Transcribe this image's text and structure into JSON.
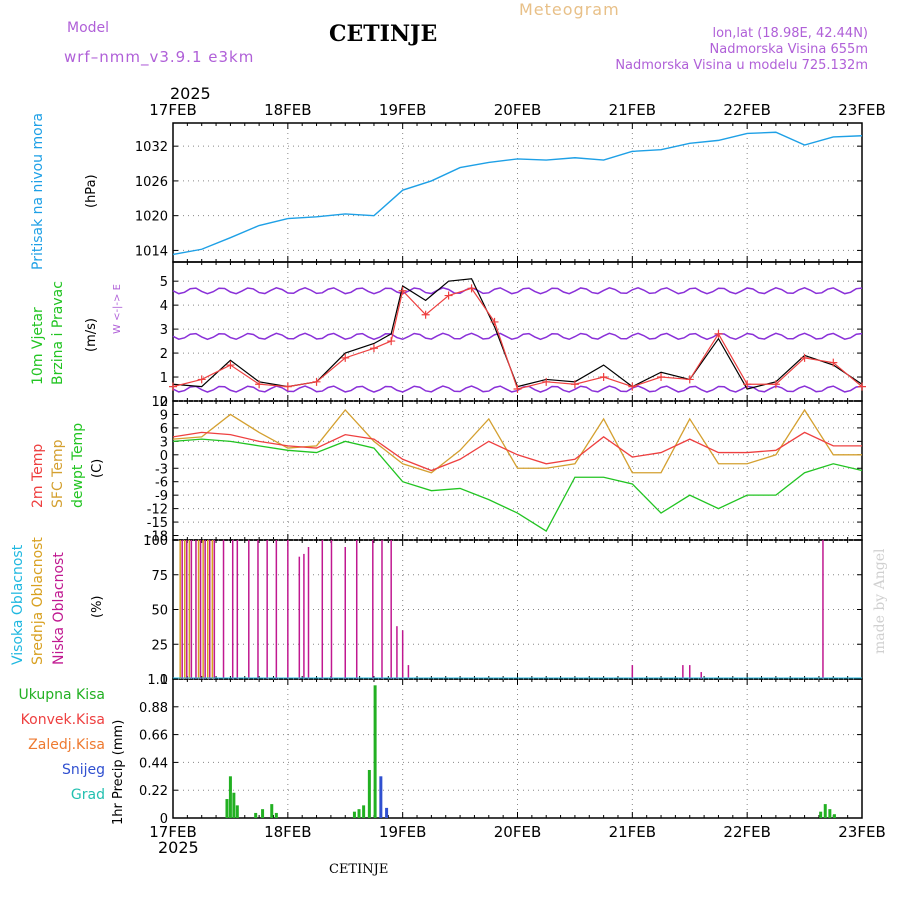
{
  "header": {
    "model_label": "Model",
    "model_name": "wrf–nmm_v3.9.1  e3km",
    "station": "CETINJE",
    "chart_kind": "Meteogram",
    "lonlat": "lon,lat (18.98E, 42.44N)",
    "altitude": "Nadmorska Visina 655m",
    "model_altitude": "Nadmorska Visina u modelu 725.132m",
    "year_top": "2025",
    "year_bottom": "2025",
    "footer_station": "CETINJE",
    "credit": "made by Angel"
  },
  "colors": {
    "pressure": "#1ea0e6",
    "temp2m": "#ee4040",
    "sfc": "#d4a030",
    "dew": "#22c422",
    "high_cloud": "#20b8e0",
    "mid_cloud": "#d8a020",
    "low_cloud": "#c01890",
    "precip": "#22b022",
    "snow": "#3050d0",
    "wind_purple": "#8a30d8",
    "grid": "#888888"
  },
  "chart_data": [
    {
      "id": "pressure",
      "type": "line",
      "title": "Pritisak na nivou mora",
      "ylabel": "(hPa)",
      "yticks": [
        "1032",
        "1026",
        "1020",
        "1014"
      ],
      "ylim": [
        1012,
        1036
      ],
      "x_day": [
        0,
        0.25,
        0.5,
        0.75,
        1.0,
        1.25,
        1.5,
        1.75,
        2.0,
        2.25,
        2.5,
        2.75,
        3.0,
        3.25,
        3.5,
        3.75,
        4.0,
        4.25,
        4.5,
        4.75,
        5.0,
        5.25,
        5.5,
        5.75,
        6.0
      ],
      "series": [
        {
          "name": "Sea level pressure",
          "values": [
            1013.3,
            1014.2,
            1016.2,
            1018.3,
            1019.5,
            1019.8,
            1020.3,
            1020.0,
            1024.4,
            1026.0,
            1028.3,
            1029.2,
            1029.8,
            1029.6,
            1030.0,
            1029.6,
            1031.1,
            1031.4,
            1032.5,
            1033.0,
            1034.2,
            1034.4,
            1032.2,
            1033.6,
            1033.8
          ]
        }
      ]
    },
    {
      "id": "wind",
      "type": "line",
      "title": "10m Vjetar Brzina i Pravac",
      "ylabel": "(m/s)",
      "direction_legend": "W <-|-> E",
      "yticks": [
        "5",
        "4",
        "3",
        "2",
        "1",
        "0"
      ],
      "ylim": [
        0,
        5.8
      ],
      "x_day": [
        0,
        0.25,
        0.5,
        0.75,
        1.0,
        1.25,
        1.5,
        1.75,
        1.9,
        2.0,
        2.2,
        2.4,
        2.6,
        2.8,
        3.0,
        3.25,
        3.5,
        3.75,
        4.0,
        4.25,
        4.5,
        4.75,
        5.0,
        5.25,
        5.5,
        5.75,
        6.0
      ],
      "series": [
        {
          "name": "Wind speed",
          "values": [
            0.6,
            0.9,
            1.5,
            0.7,
            0.6,
            0.8,
            1.8,
            2.2,
            2.5,
            4.6,
            3.6,
            4.4,
            4.7,
            3.3,
            0.5,
            0.8,
            0.7,
            1.0,
            0.6,
            1.0,
            0.9,
            2.8,
            0.7,
            0.7,
            1.8,
            1.6,
            0.6
          ]
        },
        {
          "name": "Gust",
          "values": [
            0.7,
            0.6,
            1.7,
            0.8,
            0.6,
            0.8,
            2.0,
            2.4,
            2.8,
            4.8,
            4.2,
            5.0,
            5.1,
            3.1,
            0.6,
            0.9,
            0.8,
            1.5,
            0.6,
            1.2,
            0.9,
            2.6,
            0.5,
            0.8,
            1.9,
            1.5,
            0.7
          ]
        }
      ]
    },
    {
      "id": "temperature",
      "type": "line",
      "title": "2m Temp / SFC Temp / dewpt Temp",
      "ylabel": "(C)",
      "label_2m": "2m Temp",
      "label_sfc": "SFC Temp",
      "label_dew": "dewpt Temp",
      "yticks": [
        "12",
        "9",
        "6",
        "3",
        "0",
        "-3",
        "-6",
        "-9",
        "-12",
        "-15",
        "-18"
      ],
      "ylim": [
        -19,
        12
      ],
      "x_day": [
        0,
        0.25,
        0.5,
        0.75,
        1.0,
        1.25,
        1.5,
        1.75,
        2.0,
        2.25,
        2.5,
        2.75,
        3.0,
        3.25,
        3.5,
        3.75,
        4.0,
        4.25,
        4.5,
        4.75,
        5.0,
        5.25,
        5.5,
        5.75,
        6.0
      ],
      "series": [
        {
          "name": "2m Temp",
          "values": [
            4,
            5,
            4.5,
            3,
            2,
            1.5,
            4.5,
            3.5,
            -1,
            -3.5,
            -1,
            3,
            0,
            -2,
            -1,
            4,
            -0.5,
            0.5,
            3.5,
            0.5,
            0.5,
            1,
            5,
            2,
            2
          ]
        },
        {
          "name": "SFC Temp",
          "values": [
            3.5,
            4,
            9,
            5,
            1.5,
            2,
            10,
            3,
            -2,
            -4,
            1,
            8,
            -3,
            -3,
            -2,
            8,
            -4,
            -4,
            8,
            -2,
            -2,
            0,
            10,
            0,
            0
          ]
        },
        {
          "name": "dewpt Temp",
          "values": [
            3,
            3.5,
            3,
            2,
            1,
            0.5,
            3,
            1.5,
            -6,
            -8,
            -7.5,
            -10,
            -13,
            -17,
            -5,
            -5,
            -6.5,
            -13,
            -9,
            -12,
            -9,
            -9,
            -4,
            -2,
            -3.5
          ]
        }
      ]
    },
    {
      "id": "cloud",
      "type": "bar",
      "title": "Visoka / Srednja / Niska Oblacnost",
      "ylabel": "(%)",
      "label_high": "Visoka Oblacnost",
      "label_mid": "Srednja Oblacnost",
      "label_low": "Niska Oblacnost",
      "yticks": [
        "100",
        "75",
        "50",
        "25",
        "0"
      ],
      "ylim": [
        0,
        100
      ],
      "x_day": [
        0.08,
        0.12,
        0.16,
        0.2,
        0.24,
        0.28,
        0.32,
        0.36,
        0.44,
        0.52,
        0.56,
        0.66,
        0.74,
        0.82,
        0.9,
        1.0,
        1.1,
        1.14,
        1.18,
        1.3,
        1.38,
        1.5,
        1.6,
        1.74,
        1.82,
        1.9,
        1.95,
        2.0,
        2.05,
        4.0,
        4.44,
        4.5,
        4.6,
        5.66
      ],
      "series": [
        {
          "name": "Niska Oblacnost",
          "values": [
            100,
            100,
            100,
            100,
            100,
            100,
            100,
            100,
            100,
            100,
            100,
            100,
            100,
            100,
            100,
            100,
            88,
            90,
            95,
            100,
            100,
            95,
            100,
            100,
            100,
            100,
            38,
            35,
            10,
            10,
            10,
            10,
            5,
            100
          ]
        },
        {
          "name": "Srednja Oblacnost",
          "values": [
            100,
            100,
            100,
            0,
            100,
            100,
            100,
            100,
            0,
            0,
            0,
            0,
            0,
            0,
            0,
            0,
            0,
            0,
            0,
            0,
            0,
            0,
            0,
            0,
            0,
            0,
            0,
            0,
            0,
            0,
            0,
            0,
            0,
            0
          ]
        }
      ]
    },
    {
      "id": "precip",
      "type": "bar",
      "title": "1hr Precip (mm)",
      "ylabel": "1hr Precip (mm)",
      "legend": [
        "Ukupna Kisa",
        "Konvek.Kisa",
        "Zaledj.Kisa",
        "Snijeg",
        "Grad"
      ],
      "yticks": [
        "1.1",
        "0.88",
        "0.66",
        "0.44",
        "0.22",
        "0"
      ],
      "ylim": [
        0,
        1.1
      ],
      "x_day": [
        0.47,
        0.5,
        0.53,
        0.56,
        0.72,
        0.78,
        0.86,
        0.9,
        1.58,
        1.62,
        1.66,
        1.71,
        1.76,
        1.81,
        1.86,
        5.64,
        5.68,
        5.72,
        5.76
      ],
      "series": [
        {
          "name": "Ukupna Kisa",
          "values": [
            0.15,
            0.33,
            0.2,
            0.1,
            0.04,
            0.07,
            0.11,
            0.04,
            0.05,
            0.07,
            0.1,
            0.38,
            1.05,
            0.33,
            0.08,
            0.05,
            0.11,
            0.07,
            0.03
          ]
        },
        {
          "name": "Snijeg",
          "values": [
            0,
            0,
            0,
            0,
            0,
            0,
            0,
            0,
            0,
            0,
            0,
            0,
            0,
            0.33,
            0.08,
            0,
            0,
            0,
            0
          ]
        }
      ]
    }
  ],
  "dates": [
    "17FEB",
    "18FEB",
    "19FEB",
    "20FEB",
    "21FEB",
    "22FEB",
    "23FEB"
  ]
}
